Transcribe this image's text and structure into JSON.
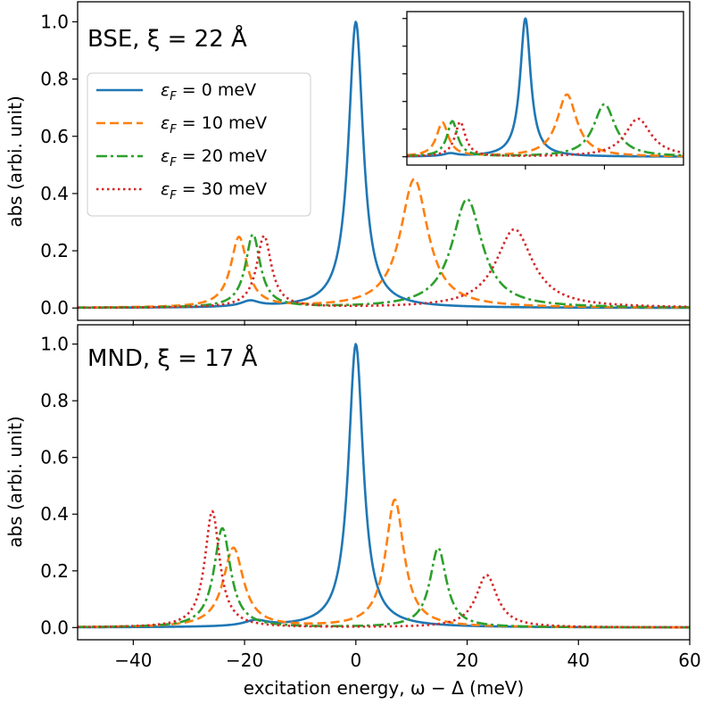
{
  "chart_data": [
    {
      "type": "line",
      "panel_label": "BSE, ξ = 22 Å",
      "ylabel": "abs (arbi. unit)",
      "xlabel": "",
      "xlim": [
        -50,
        60
      ],
      "ylim": [
        0,
        1.05
      ],
      "yticks": [
        0.0,
        0.2,
        0.4,
        0.6,
        0.8,
        1.0
      ],
      "ytick_labels": [
        "0.0",
        "0.2",
        "0.4",
        "0.6",
        "0.8",
        "1.0"
      ],
      "legend_position": "upper-left",
      "series": [
        {
          "name": "εF = 0 meV",
          "legend_label": "ε",
          "legend_sub": "F",
          "legend_value": " = 0 meV",
          "color": "#1f77b4",
          "style": "solid",
          "peaks": [
            {
              "x": 0,
              "height": 1.0,
              "width": 1.6
            },
            {
              "x": -19,
              "height": 0.02,
              "width": 2.0
            }
          ],
          "baseline": 0.0
        },
        {
          "name": "εF = 10 meV",
          "legend_label": "ε",
          "legend_sub": "F",
          "legend_value": " = 10 meV",
          "color": "#ff7f0e",
          "style": "dashed",
          "peaks": [
            {
              "x": -21,
              "height": 0.245,
              "width": 1.8
            },
            {
              "x": 10.5,
              "height": 0.45,
              "width": 3.0
            }
          ],
          "baseline": 0.0
        },
        {
          "name": "εF = 20 meV",
          "legend_label": "ε",
          "legend_sub": "F",
          "legend_value": " = 20 meV",
          "color": "#2ca02c",
          "style": "dashdot",
          "peaks": [
            {
              "x": -18.5,
              "height": 0.255,
              "width": 1.6
            },
            {
              "x": 20,
              "height": 0.38,
              "width": 3.3
            }
          ],
          "baseline": 0.0
        },
        {
          "name": "εF = 30 meV",
          "legend_label": "ε",
          "legend_sub": "F",
          "legend_value": " = 30 meV",
          "color": "#d62728",
          "style": "dotted",
          "peaks": [
            {
              "x": -16.5,
              "height": 0.25,
              "width": 1.6
            },
            {
              "x": 28.5,
              "height": 0.275,
              "width": 4.0
            }
          ],
          "baseline": 0.0
        }
      ],
      "inset": {
        "xlim": [
          -30,
          40
        ],
        "note": "zoomed view of the same curves, no tick labels"
      }
    },
    {
      "type": "line",
      "panel_label": "MND, ξ = 17 Å",
      "ylabel": "abs (arbi. unit)",
      "xlabel": "excitation energy, ω − Δ (meV)",
      "xlim": [
        -50,
        60
      ],
      "ylim": [
        0,
        1.05
      ],
      "xticks": [
        -40,
        -20,
        0,
        20,
        40,
        60
      ],
      "xtick_labels": [
        "−40",
        "−20",
        "0",
        "20",
        "40",
        "60"
      ],
      "yticks": [
        0.0,
        0.2,
        0.4,
        0.6,
        0.8,
        1.0
      ],
      "ytick_labels": [
        "0.0",
        "0.2",
        "0.4",
        "0.6",
        "0.8",
        "1.0"
      ],
      "series": [
        {
          "name": "εF = 0 meV",
          "color": "#1f77b4",
          "style": "solid",
          "peaks": [
            {
              "x": 0,
              "height": 1.0,
              "width": 1.6
            },
            {
              "x": -18,
              "height": 0.02,
              "width": 2.5
            }
          ],
          "baseline": 0.0
        },
        {
          "name": "εF = 10 meV",
          "color": "#ff7f0e",
          "style": "dashed",
          "peaks": [
            {
              "x": -22,
              "height": 0.28,
              "width": 2.2
            },
            {
              "x": 7,
              "height": 0.45,
              "width": 2.0
            }
          ],
          "baseline": 0.0
        },
        {
          "name": "εF = 20 meV",
          "color": "#2ca02c",
          "style": "dashdot",
          "peaks": [
            {
              "x": -24,
              "height": 0.35,
              "width": 1.8
            },
            {
              "x": 14.8,
              "height": 0.28,
              "width": 1.8
            }
          ],
          "baseline": 0.0
        },
        {
          "name": "εF = 30 meV",
          "color": "#d62728",
          "style": "dotted",
          "peaks": [
            {
              "x": -25.8,
              "height": 0.41,
              "width": 1.6
            },
            {
              "x": 23.5,
              "height": 0.185,
              "width": 2.3
            }
          ],
          "baseline": 0.0
        }
      ]
    }
  ]
}
